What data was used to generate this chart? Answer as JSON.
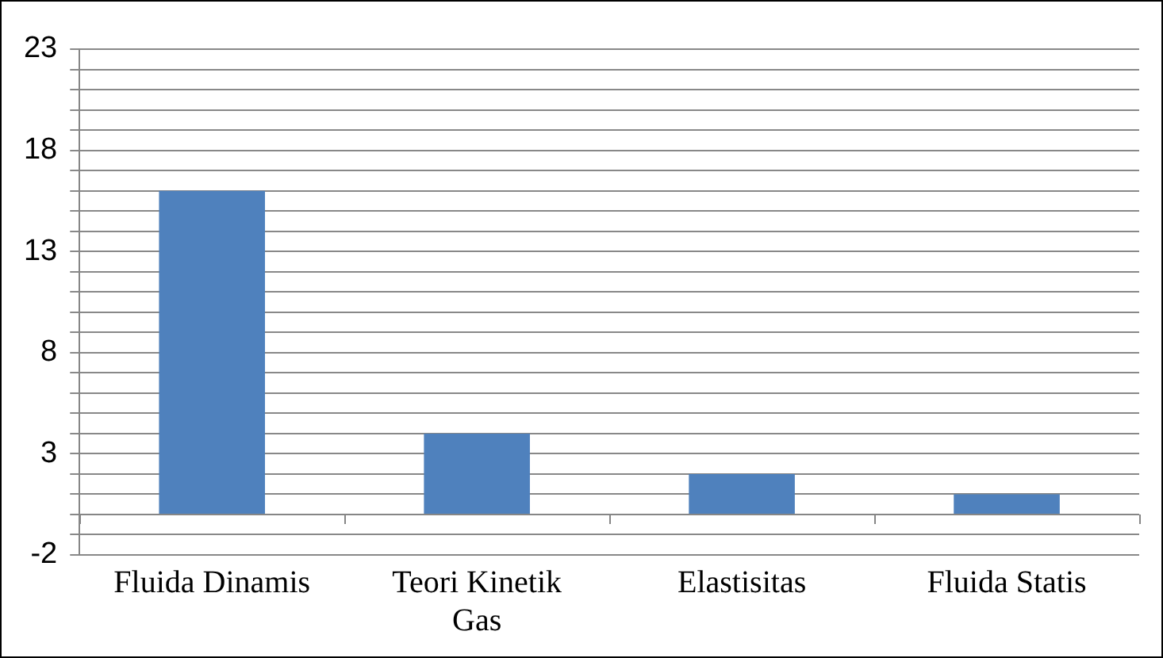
{
  "chart_data": {
    "type": "bar",
    "categories": [
      "Fluida Dinamis",
      "Teori Kinetik Gas",
      "Elastisitas",
      "Fluida Statis"
    ],
    "values": [
      16,
      4,
      2,
      1
    ],
    "color": "#4f81bd",
    "ylim": [
      -2,
      23
    ],
    "yticks": [
      -2,
      {
        "value": -1,
        "label": null
      },
      {
        "value": 0,
        "label": null
      },
      {
        "value": 1,
        "label": null
      },
      {
        "value": 2,
        "label": null
      },
      3,
      {
        "value": 4,
        "label": null
      },
      {
        "value": 5,
        "label": null
      },
      {
        "value": 6,
        "label": null
      },
      {
        "value": 7,
        "label": null
      },
      8,
      {
        "value": 9,
        "label": null
      },
      {
        "value": 10,
        "label": null
      },
      {
        "value": 11,
        "label": null
      },
      {
        "value": 12,
        "label": null
      },
      13,
      {
        "value": 14,
        "label": null
      },
      {
        "value": 15,
        "label": null
      },
      {
        "value": 16,
        "label": null
      },
      {
        "value": 17,
        "label": null
      },
      18,
      {
        "value": 19,
        "label": null
      },
      {
        "value": 20,
        "label": null
      },
      {
        "value": 21,
        "label": null
      },
      {
        "value": 22,
        "label": null
      },
      23
    ],
    "grid": "y",
    "legend": false
  }
}
